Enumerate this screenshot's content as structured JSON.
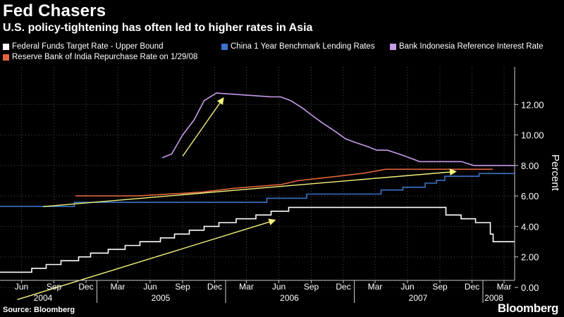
{
  "chart_data": {
    "type": "line",
    "title": "Fed Chasers",
    "subtitle": "U.S. policy-tightening has often led to higher rates in Asia",
    "ylabel": "Percent",
    "ylim": [
      0,
      14
    ],
    "yticks": [
      "0.00",
      "2.00",
      "4.00",
      "6.00",
      "8.00",
      "10.00",
      "12.00"
    ],
    "xrange": [
      "2004-04-01",
      "2008-03-31"
    ],
    "x_month_ticks": [
      {
        "label": "Jun",
        "date": "2004-06-01"
      },
      {
        "label": "Sep",
        "date": "2004-09-01"
      },
      {
        "label": "Dec",
        "date": "2004-12-01"
      },
      {
        "label": "Mar",
        "date": "2005-03-01"
      },
      {
        "label": "Jun",
        "date": "2005-06-01"
      },
      {
        "label": "Sep",
        "date": "2005-09-01"
      },
      {
        "label": "Dec",
        "date": "2005-12-01"
      },
      {
        "label": "Mar",
        "date": "2006-03-01"
      },
      {
        "label": "Jun",
        "date": "2006-06-01"
      },
      {
        "label": "Sep",
        "date": "2006-09-01"
      },
      {
        "label": "Dec",
        "date": "2006-12-01"
      },
      {
        "label": "Mar",
        "date": "2007-03-01"
      },
      {
        "label": "Jun",
        "date": "2007-06-01"
      },
      {
        "label": "Sep",
        "date": "2007-09-01"
      },
      {
        "label": "Dec",
        "date": "2007-12-01"
      },
      {
        "label": "Mar",
        "date": "2008-03-01"
      }
    ],
    "x_year_labels": [
      {
        "label": "2004",
        "date": "2004-08-01"
      },
      {
        "label": "2005",
        "date": "2005-07-01"
      },
      {
        "label": "2006",
        "date": "2006-07-01"
      },
      {
        "label": "2007",
        "date": "2007-07-01"
      },
      {
        "label": "2008",
        "date": "2008-02-01"
      }
    ],
    "x_year_separators": [
      "2005-01-01",
      "2006-01-01",
      "2007-01-01",
      "2008-01-01"
    ],
    "grid": true,
    "legend_position": "top",
    "series": [
      {
        "name": "Federal Funds Target Rate - Upper Bound",
        "color": "#ffffff",
        "step": true,
        "points": [
          [
            "2004-04-01",
            1.0
          ],
          [
            "2004-06-30",
            1.25
          ],
          [
            "2004-08-10",
            1.5
          ],
          [
            "2004-09-21",
            1.75
          ],
          [
            "2004-11-10",
            2.0
          ],
          [
            "2004-12-14",
            2.25
          ],
          [
            "2005-02-02",
            2.5
          ],
          [
            "2005-03-22",
            2.75
          ],
          [
            "2005-05-03",
            3.0
          ],
          [
            "2005-06-30",
            3.25
          ],
          [
            "2005-08-09",
            3.5
          ],
          [
            "2005-09-20",
            3.75
          ],
          [
            "2005-11-01",
            4.0
          ],
          [
            "2005-12-13",
            4.25
          ],
          [
            "2006-01-31",
            4.5
          ],
          [
            "2006-03-28",
            4.75
          ],
          [
            "2006-05-10",
            5.0
          ],
          [
            "2006-06-29",
            5.25
          ],
          [
            "2007-09-18",
            4.75
          ],
          [
            "2007-10-31",
            4.5
          ],
          [
            "2007-12-11",
            4.25
          ],
          [
            "2008-01-22",
            3.5
          ],
          [
            "2008-01-30",
            3.0
          ],
          [
            "2008-03-31",
            3.0
          ]
        ]
      },
      {
        "name": "China 1 Year Benchmark Lending Rates",
        "color": "#3a73c8",
        "step": true,
        "points": [
          [
            "2004-04-01",
            5.31
          ],
          [
            "2004-10-29",
            5.58
          ],
          [
            "2006-04-28",
            5.85
          ],
          [
            "2006-08-19",
            6.12
          ],
          [
            "2007-03-18",
            6.39
          ],
          [
            "2007-05-19",
            6.57
          ],
          [
            "2007-07-21",
            6.84
          ],
          [
            "2007-08-22",
            7.02
          ],
          [
            "2007-09-15",
            7.29
          ],
          [
            "2007-12-21",
            7.47
          ],
          [
            "2008-03-31",
            7.47
          ]
        ]
      },
      {
        "name": "Bank Indonesia Reference Interest Rate",
        "color": "#c79be8",
        "step": false,
        "points": [
          [
            "2005-07-05",
            8.5
          ],
          [
            "2005-08-01",
            8.75
          ],
          [
            "2005-09-01",
            10.0
          ],
          [
            "2005-10-04",
            11.0
          ],
          [
            "2005-11-01",
            12.25
          ],
          [
            "2005-12-06",
            12.75
          ],
          [
            "2006-05-09",
            12.5
          ],
          [
            "2006-06-06",
            12.5
          ],
          [
            "2006-07-05",
            12.25
          ],
          [
            "2006-08-08",
            11.75
          ],
          [
            "2006-09-05",
            11.25
          ],
          [
            "2006-10-05",
            10.75
          ],
          [
            "2006-11-07",
            10.25
          ],
          [
            "2006-12-07",
            9.75
          ],
          [
            "2007-01-05",
            9.5
          ],
          [
            "2007-02-06",
            9.25
          ],
          [
            "2007-03-06",
            9.0
          ],
          [
            "2007-04-05",
            9.0
          ],
          [
            "2007-05-08",
            8.75
          ],
          [
            "2007-06-07",
            8.5
          ],
          [
            "2007-07-05",
            8.25
          ],
          [
            "2007-11-01",
            8.25
          ],
          [
            "2007-12-06",
            8.0
          ],
          [
            "2008-03-31",
            8.0
          ]
        ]
      },
      {
        "name": "Reserve Bank of India Repurchase Rate on 1/29/08",
        "color": "#e0643c",
        "step": false,
        "points": [
          [
            "2004-11-01",
            6.0
          ],
          [
            "2005-04-29",
            6.0
          ],
          [
            "2005-10-26",
            6.25
          ],
          [
            "2006-01-24",
            6.5
          ],
          [
            "2006-06-08",
            6.75
          ],
          [
            "2006-07-25",
            7.0
          ],
          [
            "2006-10-31",
            7.25
          ],
          [
            "2007-01-31",
            7.5
          ],
          [
            "2007-03-30",
            7.75
          ],
          [
            "2008-01-29",
            7.75
          ]
        ]
      }
    ],
    "annotations": [
      {
        "type": "arrow",
        "color": "#f4f47a",
        "from": [
          "2004-05-20",
          -0.8
        ],
        "to": [
          "2006-05-20",
          4.4
        ]
      },
      {
        "type": "arrow",
        "color": "#f4f47a",
        "from": [
          "2004-08-01",
          5.3
        ],
        "to": [
          "2007-10-15",
          7.6
        ]
      },
      {
        "type": "arrow",
        "color": "#f4f47a",
        "from": [
          "2005-09-01",
          8.6
        ],
        "to": [
          "2005-12-25",
          12.4
        ]
      }
    ]
  },
  "footer": {
    "source": "Source: Bloomberg",
    "brand": "Bloomberg"
  }
}
